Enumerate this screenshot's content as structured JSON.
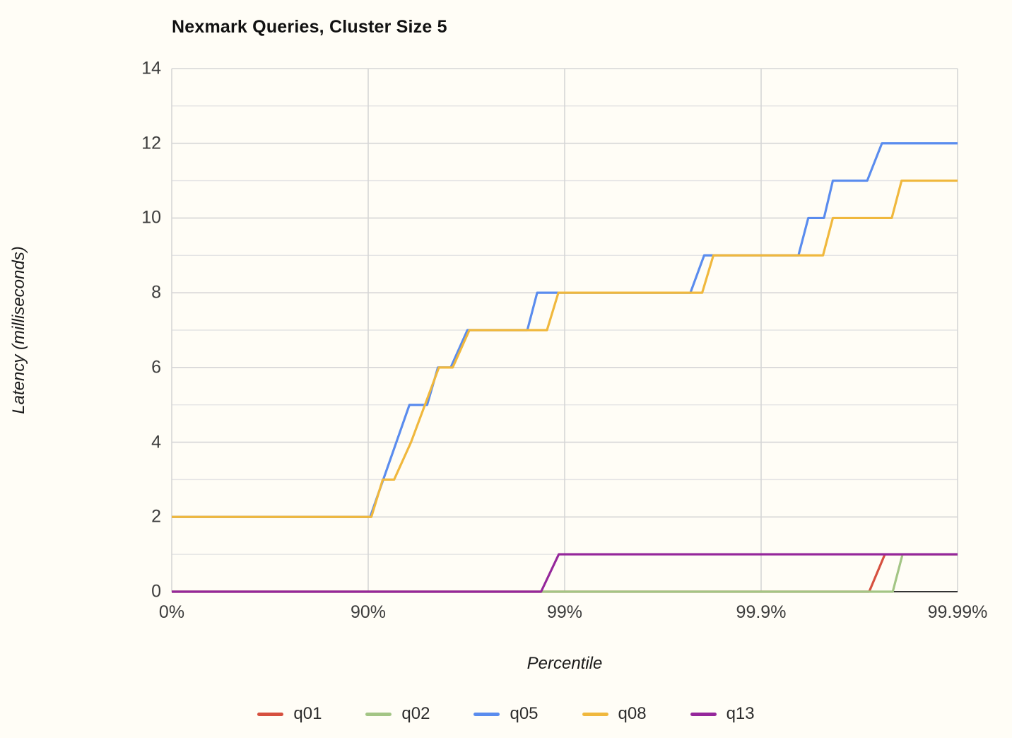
{
  "title": "Nexmark Queries, Cluster Size 5",
  "axes": {
    "x": {
      "label": "Percentile",
      "tick_labels": [
        "0%",
        "90%",
        "99%",
        "99.9%",
        "99.99%"
      ]
    },
    "y": {
      "label": "Latency (milliseconds)",
      "tick_labels": [
        "0",
        "2",
        "4",
        "6",
        "8",
        "10",
        "12",
        "14"
      ]
    }
  },
  "legend": {
    "items": [
      {
        "label": "q01",
        "color": "#d6503f"
      },
      {
        "label": "q02",
        "color": "#a3c585"
      },
      {
        "label": "q05",
        "color": "#5a8cee"
      },
      {
        "label": "q08",
        "color": "#f0b83d"
      },
      {
        "label": "q13",
        "color": "#95279b"
      }
    ]
  },
  "colors": {
    "background": "#fffdf6",
    "grid_major": "#d6d6d6",
    "grid_minor": "#e4e4e4",
    "axis_baseline": "#333333",
    "tick_text": "#3d3d3d",
    "title_text": "#111111"
  },
  "chart_data": {
    "type": "line",
    "title": "Nexmark Queries, Cluster Size 5",
    "xlabel": "Percentile",
    "ylabel": "Latency (milliseconds)",
    "x_scale": "log-percentile",
    "x_units": "decades: 0 = 0%, 1 = 90%, 2 = 99%, 3 = 99.9%, 4 = 99.99%",
    "x_ticks": [
      {
        "label": "0%",
        "decade": 0
      },
      {
        "label": "90%",
        "decade": 1
      },
      {
        "label": "99%",
        "decade": 2
      },
      {
        "label": "99.9%",
        "decade": 3
      },
      {
        "label": "99.99%",
        "decade": 4
      }
    ],
    "y_ticks_major": [
      0,
      2,
      4,
      6,
      8,
      10,
      12,
      14
    ],
    "y_ticks_minor": [
      1,
      3,
      5,
      7,
      9,
      11,
      13
    ],
    "ylim": [
      0,
      14
    ],
    "grid": "horizontal minor every 1 ms, major every 2 ms; vertical at each percentile decade",
    "legend_position": "bottom",
    "series": [
      {
        "name": "q01",
        "color": "#d6503f",
        "points": [
          [
            0,
            0
          ],
          [
            3.55,
            0
          ],
          [
            3.63,
            1
          ],
          [
            4,
            1
          ]
        ]
      },
      {
        "name": "q02",
        "color": "#a3c585",
        "points": [
          [
            0,
            0
          ],
          [
            3.67,
            0
          ],
          [
            3.72,
            1
          ],
          [
            4,
            1
          ]
        ]
      },
      {
        "name": "q05",
        "color": "#5a8cee",
        "points": [
          [
            0,
            2
          ],
          [
            1.01,
            2
          ],
          [
            1.21,
            5
          ],
          [
            1.3,
            5
          ],
          [
            1.355,
            6
          ],
          [
            1.42,
            6
          ],
          [
            1.505,
            7
          ],
          [
            1.81,
            7
          ],
          [
            1.86,
            8
          ],
          [
            2.64,
            8
          ],
          [
            2.71,
            9
          ],
          [
            3.19,
            9
          ],
          [
            3.24,
            10
          ],
          [
            3.32,
            10
          ],
          [
            3.365,
            11
          ],
          [
            3.54,
            11
          ],
          [
            3.615,
            12
          ],
          [
            4,
            12
          ]
        ]
      },
      {
        "name": "q08",
        "color": "#f0b83d",
        "points": [
          [
            0,
            2
          ],
          [
            1.016,
            2
          ],
          [
            1.074,
            3
          ],
          [
            1.132,
            3
          ],
          [
            1.218,
            4
          ],
          [
            1.36,
            6
          ],
          [
            1.43,
            6
          ],
          [
            1.515,
            7
          ],
          [
            1.91,
            7
          ],
          [
            1.968,
            8
          ],
          [
            2.7,
            8
          ],
          [
            2.757,
            9
          ],
          [
            3.315,
            9
          ],
          [
            3.365,
            10
          ],
          [
            3.665,
            10
          ],
          [
            3.715,
            11
          ],
          [
            4,
            11
          ]
        ]
      },
      {
        "name": "q13",
        "color": "#95279b",
        "points": [
          [
            0,
            0
          ],
          [
            1.88,
            0
          ],
          [
            1.97,
            1
          ],
          [
            4,
            1
          ]
        ]
      }
    ]
  }
}
